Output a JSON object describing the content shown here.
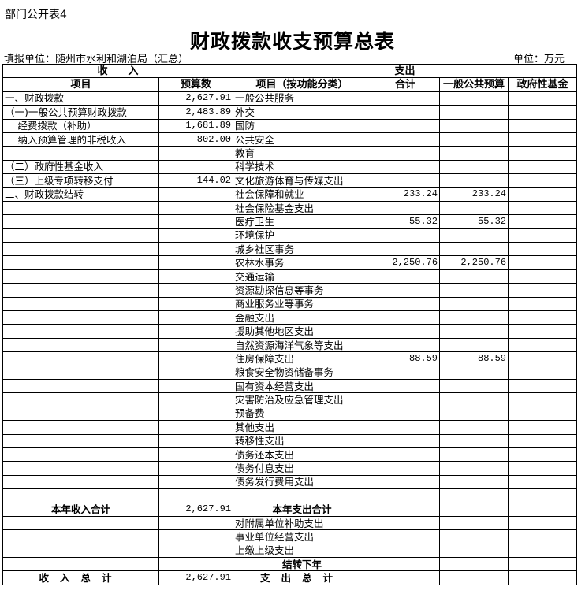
{
  "header": {
    "tag": "部门公开表4",
    "title": "财政拨款收支预算总表",
    "unit_org": "填报单位：随州市水利和湖泊局（汇总）",
    "unit": "单位：万元"
  },
  "table": {
    "income_group": "收　　入",
    "expense_group": "支出",
    "columns": [
      "项目",
      "预算数",
      "项目（按功能分类）",
      "合计",
      "一般公共预算",
      "政府性基金"
    ],
    "rows": [
      {
        "income": "一、财政拨款",
        "budget": "2,627.91",
        "expense": "一般公共服务",
        "total": "",
        "general": "",
        "fund": ""
      },
      {
        "income": "（一)一般公共预算财政拨款",
        "budget": "2,483.89",
        "expense": "外交",
        "total": "",
        "general": "",
        "fund": ""
      },
      {
        "income": "　 经费拨款（补助）",
        "budget": "1,681.89",
        "expense": "国防",
        "total": "",
        "general": "",
        "fund": ""
      },
      {
        "income": "　 纳入预算管理的非税收入",
        "budget": "802.00",
        "expense": "公共安全",
        "total": "",
        "general": "",
        "fund": ""
      },
      {
        "income": "",
        "budget": "",
        "expense": "教育",
        "total": "",
        "general": "",
        "fund": ""
      },
      {
        "income": "（二）政府性基金收入",
        "budget": "",
        "expense": "科学技术",
        "total": "",
        "general": "",
        "fund": ""
      },
      {
        "income": "（三）上级专项转移支付",
        "budget": "144.02",
        "expense": "文化旅游体育与传媒支出",
        "total": "",
        "general": "",
        "fund": ""
      },
      {
        "income": "二、财政拨款结转",
        "budget": "",
        "expense": "社会保障和就业",
        "total": "233.24",
        "general": "233.24",
        "fund": ""
      },
      {
        "income": "",
        "budget": "",
        "expense": "社会保险基金支出",
        "total": "",
        "general": "",
        "fund": ""
      },
      {
        "income": "",
        "budget": "",
        "expense": "医疗卫生",
        "total": "55.32",
        "general": "55.32",
        "fund": ""
      },
      {
        "income": "",
        "budget": "",
        "expense": "环境保护",
        "total": "",
        "general": "",
        "fund": ""
      },
      {
        "income": "",
        "budget": "",
        "expense": "城乡社区事务",
        "total": "",
        "general": "",
        "fund": ""
      },
      {
        "income": "",
        "budget": "",
        "expense": "农林水事务",
        "total": "2,250.76",
        "general": "2,250.76",
        "fund": ""
      },
      {
        "income": "",
        "budget": "",
        "expense": "交通运输",
        "total": "",
        "general": "",
        "fund": ""
      },
      {
        "income": "",
        "budget": "",
        "expense": "资源勘探信息等事务",
        "total": "",
        "general": "",
        "fund": ""
      },
      {
        "income": "",
        "budget": "",
        "expense": "商业服务业等事务",
        "total": "",
        "general": "",
        "fund": ""
      },
      {
        "income": "",
        "budget": "",
        "expense": "金融支出",
        "total": "",
        "general": "",
        "fund": ""
      },
      {
        "income": "",
        "budget": "",
        "expense": "援助其他地区支出",
        "total": "",
        "general": "",
        "fund": ""
      },
      {
        "income": "",
        "budget": "",
        "expense": "自然资源海洋气象等支出",
        "total": "",
        "general": "",
        "fund": ""
      },
      {
        "income": "",
        "budget": "",
        "expense": "住房保障支出",
        "total": "88.59",
        "general": "88.59",
        "fund": ""
      },
      {
        "income": "",
        "budget": "",
        "expense": "粮食安全物资储备事务",
        "total": "",
        "general": "",
        "fund": ""
      },
      {
        "income": "",
        "budget": "",
        "expense": "国有资本经营支出",
        "total": "",
        "general": "",
        "fund": ""
      },
      {
        "income": "",
        "budget": "",
        "expense": "灾害防治及应急管理支出",
        "total": "",
        "general": "",
        "fund": ""
      },
      {
        "income": "",
        "budget": "",
        "expense": "预备费",
        "total": "",
        "general": "",
        "fund": ""
      },
      {
        "income": "",
        "budget": "",
        "expense": "其他支出",
        "total": "",
        "general": "",
        "fund": ""
      },
      {
        "income": "",
        "budget": "",
        "expense": "转移性支出",
        "total": "",
        "general": "",
        "fund": ""
      },
      {
        "income": "",
        "budget": "",
        "expense": "债务还本支出",
        "total": "",
        "general": "",
        "fund": ""
      },
      {
        "income": "",
        "budget": "",
        "expense": "债务付息支出",
        "total": "",
        "general": "",
        "fund": ""
      },
      {
        "income": "",
        "budget": "",
        "expense": "债务发行费用支出",
        "total": "",
        "general": "",
        "fund": ""
      },
      {
        "income": "",
        "budget": "",
        "expense": "",
        "total": "",
        "general": "",
        "fund": ""
      },
      {
        "income": "本年收入合计",
        "budget": "2,627.91",
        "expense": "本年支出合计",
        "total": "",
        "general": "",
        "fund": "",
        "style": "subtotal"
      },
      {
        "income": "",
        "budget": "",
        "expense": "对附属单位补助支出",
        "total": "",
        "general": "",
        "fund": ""
      },
      {
        "income": "",
        "budget": "",
        "expense": "事业单位经营支出",
        "total": "",
        "general": "",
        "fund": ""
      },
      {
        "income": "",
        "budget": "",
        "expense": "上缴上级支出",
        "total": "",
        "general": "",
        "fund": ""
      },
      {
        "income": "",
        "budget": "",
        "expense": "结转下年",
        "total": "",
        "general": "",
        "fund": "",
        "style": "carry"
      },
      {
        "income": "收入总计",
        "budget": "2,627.91",
        "expense": "支出总计",
        "total": "",
        "general": "",
        "fund": "",
        "style": "grand"
      }
    ]
  }
}
